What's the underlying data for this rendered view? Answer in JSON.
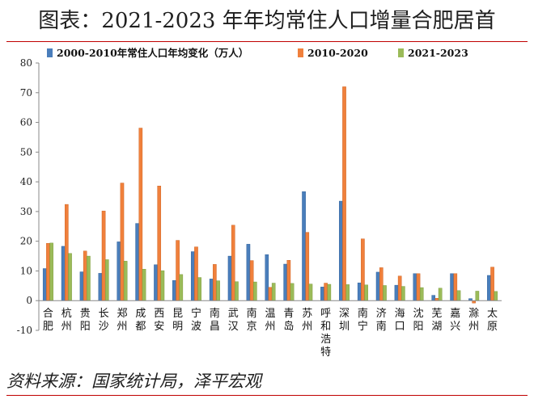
{
  "page": {
    "title": "图表：2021-2023 年年均常住人口增量合肥居首",
    "source": "资料来源：国家统计局，泽平宏观"
  },
  "chart_data": {
    "type": "bar",
    "title": "图表：2021-2023 年年均常住人口增量合肥居首",
    "xlabel": "",
    "ylabel": "",
    "ylim": [
      -10,
      80
    ],
    "yticks": [
      -10,
      0,
      10,
      20,
      30,
      40,
      50,
      60,
      70,
      80
    ],
    "grid": false,
    "legend_position": "top",
    "categories": [
      "合肥",
      "杭州",
      "贵阳",
      "长沙",
      "郑州",
      "成都",
      "西安",
      "昆明",
      "宁波",
      "南昌",
      "武汉",
      "南京",
      "温州",
      "青岛",
      "苏州",
      "呼和浩特",
      "深圳",
      "南宁",
      "济南",
      "海口",
      "沈阳",
      "芜湖",
      "嘉兴",
      "滁州",
      "太原"
    ],
    "series": [
      {
        "name": "2000-2010年常住人口年均变化（万人）",
        "color": "#4a7ebb",
        "values": [
          10.8,
          18.3,
          9.7,
          9.2,
          19.8,
          26.0,
          12.1,
          6.8,
          16.5,
          7.3,
          15.0,
          19.0,
          15.5,
          12.3,
          36.7,
          4.6,
          33.5,
          6.0,
          9.6,
          5.2,
          9.1,
          1.8,
          9.1,
          0.7,
          8.5
        ]
      },
      {
        "name": "2010-2020",
        "color": "#f0803c",
        "values": [
          19.3,
          32.4,
          16.7,
          30.2,
          39.6,
          58.1,
          38.6,
          20.3,
          18.1,
          12.2,
          25.4,
          13.5,
          4.5,
          13.6,
          23.0,
          5.9,
          72.0,
          20.8,
          11.1,
          8.3,
          9.1,
          0.8,
          9.1,
          -0.8,
          11.3
        ]
      },
      {
        "name": "2021-2023",
        "color": "#9bbb59",
        "values": [
          19.4,
          15.9,
          15.0,
          13.8,
          13.3,
          10.6,
          10.1,
          8.8,
          7.8,
          6.7,
          6.4,
          6.3,
          5.9,
          5.8,
          5.6,
          5.5,
          5.4,
          5.3,
          5.1,
          4.8,
          4.4,
          4.2,
          3.4,
          3.2,
          3.1
        ]
      }
    ]
  }
}
